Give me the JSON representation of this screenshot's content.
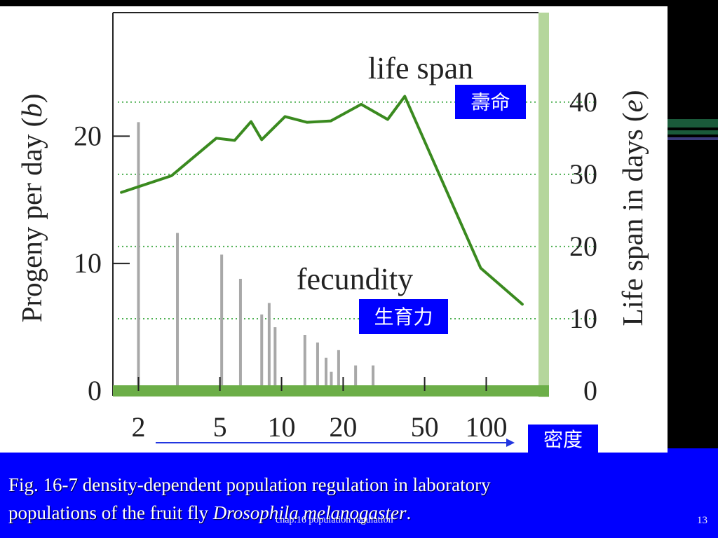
{
  "caption": {
    "line1": "Fig. 16-7 density-dependent population regulation in laboratory",
    "line2_prefix": "populations of the fruit fly ",
    "line2_italic": "Drosophila melanogaster",
    "line2_suffix": "."
  },
  "footer": {
    "center": "chap.16 population regulation",
    "page_number": "13"
  },
  "overlays": {
    "life_span_chinese": "壽命",
    "fecundity_chinese": "生育力",
    "density_chinese": "密度"
  },
  "colors": {
    "slide_background": "#0000ff",
    "fecundity_bar": "#a8a8a8",
    "life_span_line": "#3a8a1f",
    "grid_dotted": "#4caf50",
    "right_axis_band": "#b5d69c",
    "baseline_band": "#6cae48",
    "label_box": "#0000ff"
  },
  "chart_data": {
    "type": "bar+line",
    "x_scale": "log",
    "xticks": [
      2,
      5,
      10,
      20,
      50,
      100
    ],
    "xtick_labels": [
      "2",
      "5",
      "10",
      "20",
      "50",
      "100"
    ],
    "xlabel": "",
    "xlim": [
      1.5,
      180
    ],
    "y_left": {
      "label_prefix": "Progeny per day (",
      "label_symbol": "b",
      "label_suffix": ")",
      "ticks": [
        0,
        10,
        20
      ],
      "tick_labels": [
        "0",
        "10",
        "20"
      ],
      "lim": [
        0,
        29.7
      ]
    },
    "y_right": {
      "label_prefix": "Life span in days (",
      "label_symbol": "e",
      "label_suffix": ")",
      "ticks": [
        0,
        10,
        20,
        30,
        40
      ],
      "tick_labels": [
        "0",
        "10",
        "20",
        "30",
        "40"
      ],
      "lim": [
        0,
        52.4
      ],
      "gridlines": [
        10,
        20,
        30,
        40
      ]
    },
    "series": [
      {
        "name": "fecundity",
        "type": "bar",
        "axis": "left",
        "points": [
          {
            "x": 2.0,
            "y": 21.1
          },
          {
            "x": 3.1,
            "y": 12.4
          },
          {
            "x": 5.1,
            "y": 10.7
          },
          {
            "x": 6.3,
            "y": 8.8
          },
          {
            "x": 8.0,
            "y": 6.0
          },
          {
            "x": 8.7,
            "y": 6.9
          },
          {
            "x": 9.3,
            "y": 5.0
          },
          {
            "x": 13.0,
            "y": 4.4
          },
          {
            "x": 15.0,
            "y": 3.8
          },
          {
            "x": 16.5,
            "y": 2.6
          },
          {
            "x": 17.5,
            "y": 1.5
          },
          {
            "x": 19.0,
            "y": 3.2
          },
          {
            "x": 23.0,
            "y": 2.0
          },
          {
            "x": 28.0,
            "y": 2.0
          }
        ]
      },
      {
        "name": "life span",
        "type": "line",
        "axis": "right",
        "points": [
          {
            "x": 1.65,
            "y": 27.5
          },
          {
            "x": 2.9,
            "y": 29.8
          },
          {
            "x": 4.8,
            "y": 35.0
          },
          {
            "x": 5.9,
            "y": 34.7
          },
          {
            "x": 7.1,
            "y": 37.3
          },
          {
            "x": 8.0,
            "y": 34.8
          },
          {
            "x": 10.4,
            "y": 38.0
          },
          {
            "x": 13.3,
            "y": 37.2
          },
          {
            "x": 17.4,
            "y": 37.4
          },
          {
            "x": 24.5,
            "y": 39.7
          },
          {
            "x": 33.0,
            "y": 37.6
          },
          {
            "x": 40.0,
            "y": 40.8
          },
          {
            "x": 68.0,
            "y": 26.0
          },
          {
            "x": 94.0,
            "y": 17.0
          },
          {
            "x": 150.0,
            "y": 12.0
          }
        ]
      }
    ],
    "annotations": [
      "life span",
      "fecundity"
    ],
    "grid": "dotted horizontal at right-axis ticks"
  }
}
